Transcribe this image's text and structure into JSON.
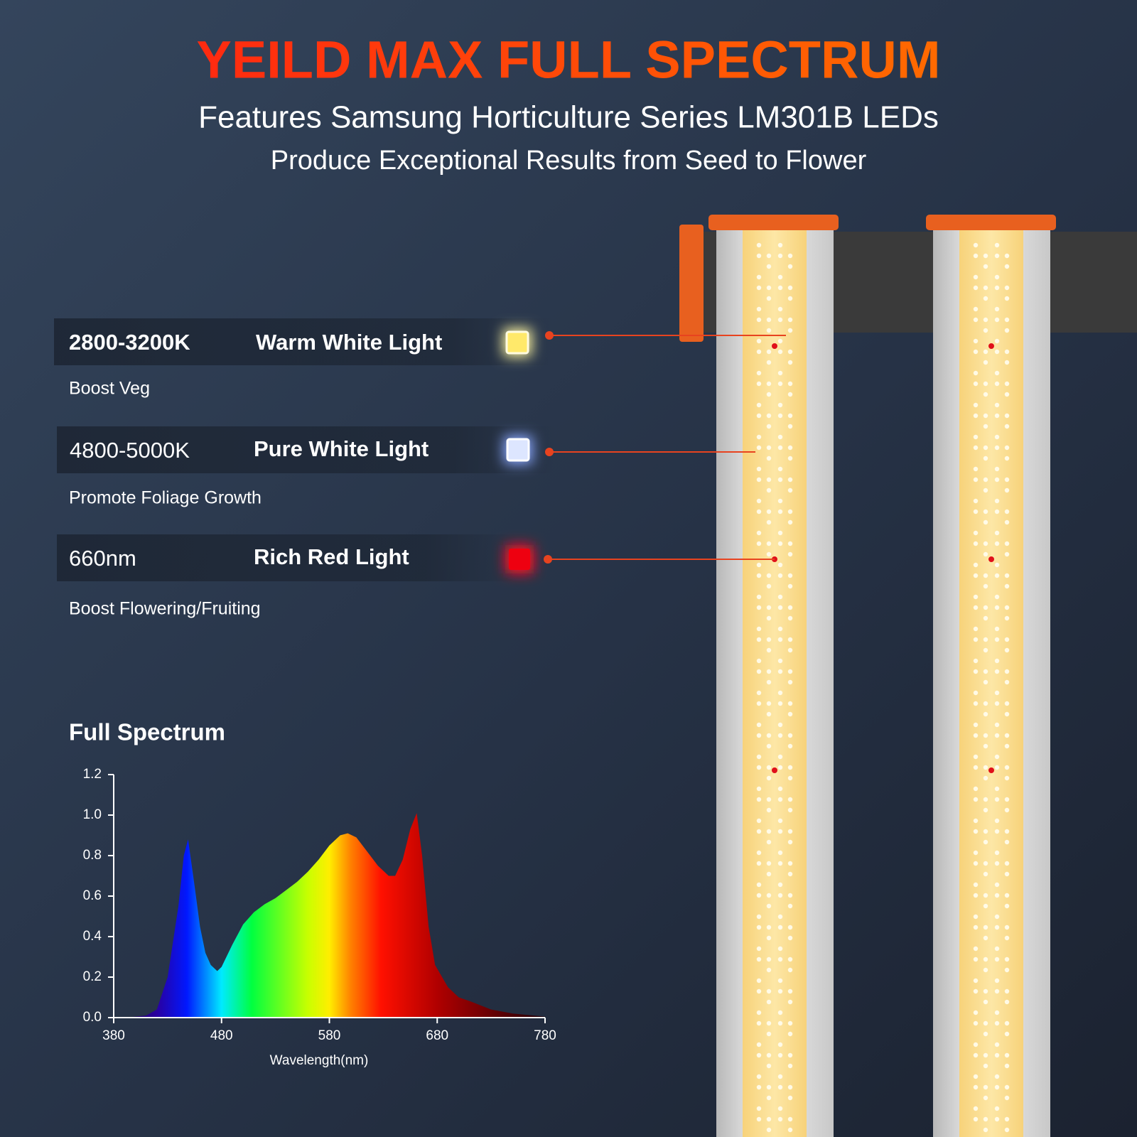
{
  "header": {
    "title": "YEILD MAX FULL SPECTRUM",
    "subtitle_1": "Features Samsung Horticulture Series LM301B LEDs",
    "subtitle_2": "Produce Exceptional Results from Seed to Flower"
  },
  "features": [
    {
      "spec": "2800-3200K",
      "name": "Warm White Light",
      "benefit": "Boost Veg"
    },
    {
      "spec": "4800-5000K",
      "name": "Pure White Light",
      "benefit": "Promote Foliage Growth"
    },
    {
      "spec": "660nm",
      "name": "Rich Red Light",
      "benefit": "Boost Flowering/Fruiting"
    }
  ],
  "chart_data": {
    "type": "area",
    "title": "Full Spectrum",
    "x_label": "Wavelength(nm)",
    "x": [
      380,
      390,
      400,
      410,
      420,
      430,
      440,
      445,
      449,
      455,
      460,
      465,
      470,
      476,
      480,
      490,
      500,
      510,
      520,
      530,
      540,
      550,
      560,
      570,
      580,
      590,
      597,
      605,
      615,
      625,
      635,
      641,
      648,
      655,
      661,
      666,
      672,
      678,
      690,
      700,
      711,
      730,
      750,
      780
    ],
    "values": [
      0,
      0,
      0.005,
      0.01,
      0.04,
      0.2,
      0.55,
      0.8,
      0.88,
      0.65,
      0.45,
      0.32,
      0.26,
      0.23,
      0.25,
      0.36,
      0.46,
      0.52,
      0.56,
      0.59,
      0.63,
      0.67,
      0.72,
      0.78,
      0.85,
      0.9,
      0.91,
      0.89,
      0.82,
      0.75,
      0.7,
      0.7,
      0.78,
      0.93,
      1.01,
      0.8,
      0.45,
      0.26,
      0.15,
      0.1,
      0.08,
      0.04,
      0.02,
      0.005
    ],
    "xlim": [
      380,
      780
    ],
    "xticks": [
      380,
      480,
      580,
      680,
      780
    ],
    "ylim": [
      0,
      1.2
    ],
    "yticks": [
      {
        "value": 0,
        "label": "0.0"
      },
      0.2,
      0.4,
      0.6,
      0.8,
      {
        "value": 1,
        "label": "1.0"
      },
      1.2
    ]
  }
}
